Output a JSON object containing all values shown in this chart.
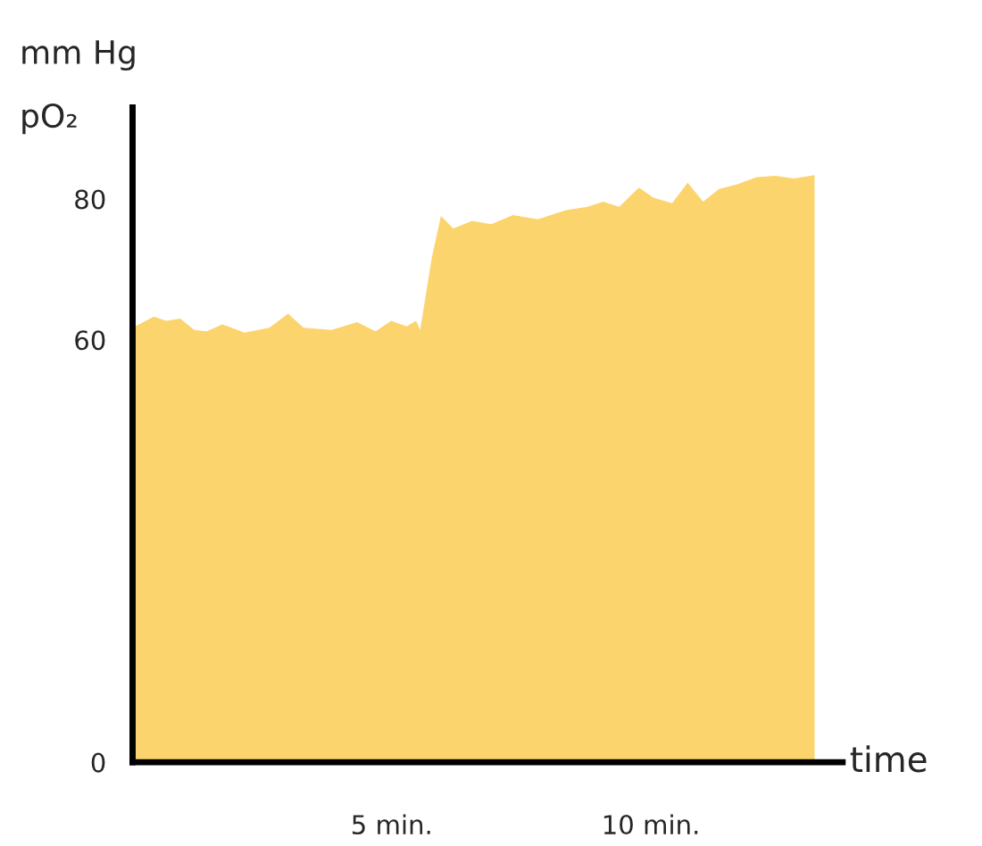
{
  "chart_data": {
    "type": "area",
    "xlabel": "time",
    "annotations": [
      "mm Hg",
      "pO₂"
    ],
    "series": [
      {
        "color": "#fbd46d",
        "x": [
          0.05,
          0.41,
          0.65,
          0.92,
          1.19,
          1.43,
          1.73,
          2.16,
          2.64,
          3.0,
          3.3,
          3.84,
          4.33,
          4.69,
          4.99,
          5.29,
          5.47,
          5.55,
          5.77,
          5.95,
          6.19,
          6.55,
          6.92,
          7.34,
          7.82,
          8.36,
          8.78,
          9.08,
          9.39,
          9.77,
          10.05,
          10.41,
          10.71,
          11.01,
          11.31,
          11.67,
          12.04,
          12.4,
          12.76,
          13.16
        ],
        "values": [
          61.9,
          63.3,
          62.7,
          63.0,
          61.4,
          61.2,
          62.2,
          61.0,
          61.7,
          63.7,
          61.7,
          61.4,
          62.5,
          61.2,
          62.7,
          61.9,
          62.7,
          61.4,
          71.5,
          77.6,
          75.8,
          76.9,
          76.4,
          77.7,
          77.1,
          78.4,
          78.9,
          79.6,
          78.9,
          81.6,
          80.2,
          79.4,
          82.3,
          79.6,
          81.4,
          82.1,
          83.1,
          83.3,
          82.9,
          83.4
        ]
      }
    ],
    "xlim": [
      0,
      13.7
    ],
    "xticks": [
      {
        "value": 5,
        "label": "5 min."
      },
      {
        "value": 10,
        "label": "10 min."
      }
    ],
    "ylim": [
      0,
      93
    ],
    "yticks": [
      0,
      60,
      80
    ],
    "grid": false
  }
}
